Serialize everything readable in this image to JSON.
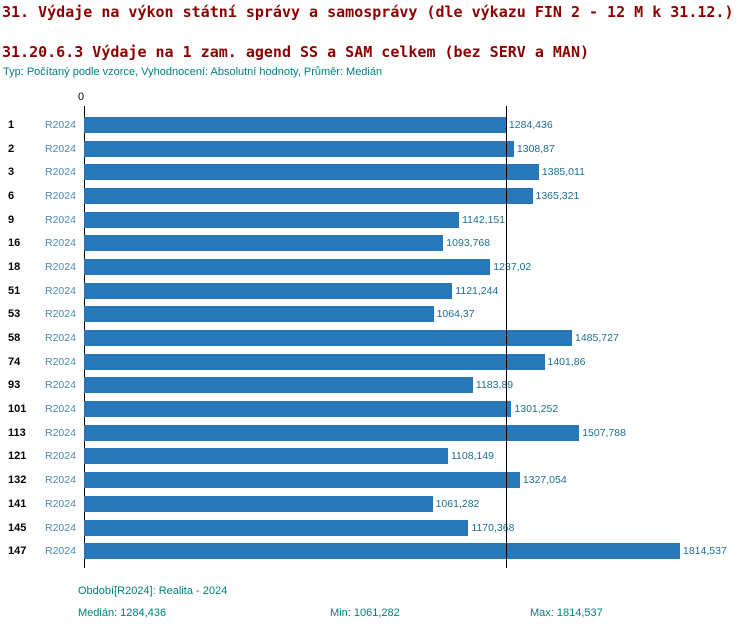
{
  "header": {
    "title": "31. Výdaje na výkon státní správy a samosprávy (dle výkazu FIN 2 - 12 M k 31.12.)",
    "subtitle": "31.20.6.3 Výdaje na 1 zam. agend SS a SAM celkem (bez SERV a MAN)",
    "meta": "Typ: Počítaný podle vzorce, Vyhodnocení: Absolutní hodnoty, Průměr: Medián"
  },
  "chart_data": {
    "type": "bar",
    "orientation": "horizontal",
    "title": "31.20.6.3 Výdaje na 1 zam. agend SS a SAM celkem (bez SERV a MAN)",
    "axis_zero_label": "0",
    "categories": [
      "1",
      "2",
      "3",
      "6",
      "9",
      "16",
      "18",
      "51",
      "53",
      "58",
      "74",
      "93",
      "101",
      "113",
      "121",
      "132",
      "141",
      "145",
      "147"
    ],
    "series": [
      {
        "name": "R2024",
        "values": [
          1284.436,
          1308.87,
          1385.011,
          1365.321,
          1142.151,
          1093.768,
          1237.02,
          1121.244,
          1064.37,
          1485.727,
          1401.86,
          1183.89,
          1301.252,
          1507.788,
          1108.149,
          1327.054,
          1061.282,
          1170.368,
          1814.537
        ]
      }
    ],
    "value_labels": [
      "1284,436",
      "1308,87",
      "1385,011",
      "1365,321",
      "1142,151",
      "1093,768",
      "1237,02",
      "1121,244",
      "1064,37",
      "1485,727",
      "1401,86",
      "1183,89",
      "1301,252",
      "1507,788",
      "1108,149",
      "1327,054",
      "1061,282",
      "1170,368",
      "1814,537"
    ],
    "xlim": [
      0,
      1814.537
    ],
    "median": 1284.436,
    "min": 1061.282,
    "max": 1814.537,
    "median_line": true,
    "grid": false,
    "legend": false,
    "bar_color": "#2878b9",
    "colors": {
      "title_text": "#8b0000",
      "meta_text": "#008080",
      "period_label": "#4a8ab0",
      "value_label": "#1a6f93",
      "axis_line": "#000000"
    }
  },
  "footer": {
    "period": "Období[R2024]: Realita - 2024",
    "median": "Medián: 1284,436",
    "min": "Min: 1061,282",
    "max": "Max: 1814,537"
  }
}
